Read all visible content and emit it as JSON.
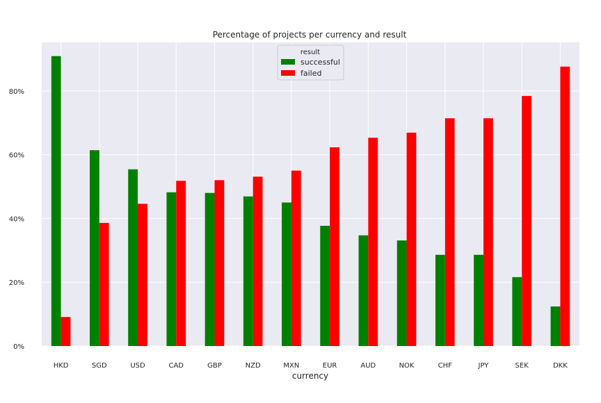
{
  "chart_data": {
    "type": "bar",
    "title": "Percentage of projects per currency and result",
    "xlabel": "currency",
    "ylabel": "",
    "categories": [
      "HKD",
      "SGD",
      "USD",
      "CAD",
      "GBP",
      "NZD",
      "MXN",
      "EUR",
      "AUD",
      "NOK",
      "CHF",
      "JPY",
      "SEK",
      "DKK"
    ],
    "series": [
      {
        "name": "successful",
        "color": "#008000",
        "values": [
          90.9,
          61.4,
          55.4,
          48.2,
          48.0,
          46.9,
          45.0,
          37.7,
          34.7,
          33.1,
          28.6,
          28.6,
          21.6,
          12.4
        ]
      },
      {
        "name": "failed",
        "color": "#ff0000",
        "values": [
          9.1,
          38.6,
          44.6,
          51.8,
          52.0,
          53.1,
          55.0,
          62.3,
          65.3,
          66.9,
          71.4,
          71.4,
          78.4,
          87.6
        ]
      }
    ],
    "ylim": [
      0,
      95.2
    ],
    "yticks": [
      0,
      20,
      40,
      60,
      80
    ],
    "ytick_labels": [
      "0%",
      "20%",
      "40%",
      "60%",
      "80%"
    ],
    "legend": {
      "title": "result",
      "placement": "top-center"
    },
    "grid": true,
    "background": "#eaeaf2"
  }
}
